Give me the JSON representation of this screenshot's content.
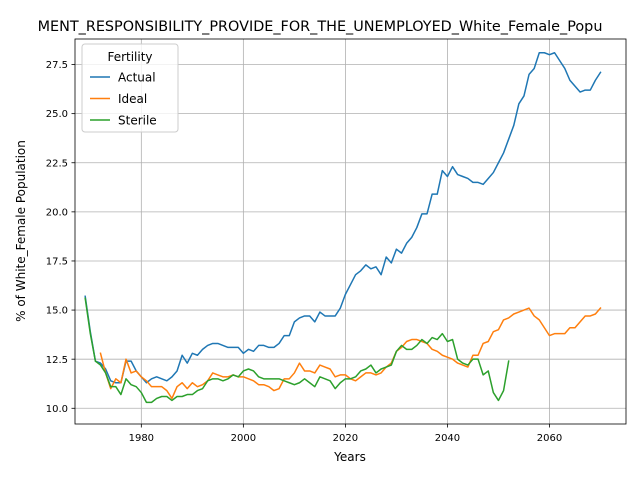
{
  "chart_data": {
    "type": "line",
    "title": "MENT_RESPONSIBILITY_PROVIDE_FOR_THE_UNEMPLOYED_White_Female_Popu",
    "xlabel": "Years",
    "ylabel": "% of White_Female Population",
    "xlim": [
      1967.0,
      2075.0
    ],
    "ylim": [
      9.2,
      28.8
    ],
    "xticks": [
      1980,
      2000,
      2020,
      2040,
      2060
    ],
    "xtick_labels": [
      "1980",
      "2000",
      "2020",
      "2040",
      "2060"
    ],
    "yticks": [
      10.0,
      12.5,
      15.0,
      17.5,
      20.0,
      22.5,
      25.0,
      27.5
    ],
    "ytick_labels": [
      "10.0",
      "12.5",
      "15.0",
      "17.5",
      "20.0",
      "22.5",
      "25.0",
      "27.5"
    ],
    "grid": true,
    "legend": {
      "title": "Fertility",
      "placement": "top-left"
    },
    "series": [
      {
        "name": "Actual",
        "color": "#1f77b4",
        "x": [
          1969,
          1970,
          1971,
          1972,
          1973,
          1974,
          1975,
          1976,
          1977,
          1978,
          1979,
          1980,
          1981,
          1982,
          1983,
          1984,
          1985,
          1986,
          1987,
          1988,
          1989,
          1990,
          1991,
          1992,
          1993,
          1994,
          1995,
          1996,
          1997,
          1998,
          1999,
          2000,
          2001,
          2002,
          2003,
          2004,
          2005,
          2006,
          2007,
          2008,
          2009,
          2010,
          2011,
          2012,
          2013,
          2014,
          2015,
          2016,
          2017,
          2018,
          2019,
          2020,
          2021,
          2022,
          2023,
          2024,
          2025,
          2026,
          2027,
          2028,
          2029,
          2030,
          2031,
          2032,
          2033,
          2034,
          2035,
          2036,
          2037,
          2038,
          2039,
          2040,
          2041,
          2042,
          2043,
          2044,
          2045,
          2046,
          2047,
          2048,
          2049,
          2050,
          2051,
          2052,
          2053,
          2054,
          2055,
          2056,
          2057,
          2058,
          2059,
          2060,
          2061,
          2062,
          2063,
          2064,
          2065,
          2066,
          2067,
          2068,
          2069,
          2070
        ],
        "y": [
          15.7,
          13.9,
          12.4,
          12.3,
          12.0,
          11.4,
          11.3,
          11.3,
          12.4,
          12.4,
          11.9,
          11.6,
          11.3,
          11.5,
          11.6,
          11.5,
          11.4,
          11.6,
          11.9,
          12.7,
          12.3,
          12.8,
          12.7,
          13.0,
          13.2,
          13.3,
          13.3,
          13.2,
          13.1,
          13.1,
          13.1,
          12.8,
          13.0,
          12.9,
          13.2,
          13.2,
          13.1,
          13.1,
          13.3,
          13.7,
          13.7,
          14.4,
          14.6,
          14.7,
          14.7,
          14.4,
          14.9,
          14.7,
          14.7,
          14.7,
          15.1,
          15.8,
          16.3,
          16.8,
          17.0,
          17.3,
          17.1,
          17.2,
          16.8,
          17.7,
          17.4,
          18.1,
          17.9,
          18.4,
          18.7,
          19.2,
          19.9,
          19.9,
          20.9,
          20.9,
          22.1,
          21.8,
          22.3,
          21.9,
          21.8,
          21.7,
          21.5,
          21.5,
          21.4,
          21.7,
          22.0,
          22.5,
          23.0,
          23.7,
          24.4,
          25.5,
          25.9,
          27.0,
          27.3,
          28.1,
          28.1,
          28.0,
          28.1,
          27.7,
          27.3,
          26.7,
          26.4,
          26.1,
          26.2,
          26.2,
          26.7,
          27.1
        ]
      },
      {
        "name": "Ideal",
        "color": "#ff7f0e",
        "x": [
          1972,
          1973,
          1974,
          1975,
          1976,
          1977,
          1978,
          1979,
          1980,
          1981,
          1982,
          1983,
          1984,
          1985,
          1986,
          1987,
          1988,
          1989,
          1990,
          1991,
          1992,
          1993,
          1994,
          1995,
          1996,
          1997,
          1998,
          1999,
          2000,
          2001,
          2002,
          2003,
          2004,
          2005,
          2006,
          2007,
          2008,
          2009,
          2010,
          2011,
          2012,
          2013,
          2014,
          2015,
          2016,
          2017,
          2018,
          2019,
          2020,
          2021,
          2022,
          2023,
          2024,
          2025,
          2026,
          2027,
          2028,
          2029,
          2030,
          2031,
          2032,
          2033,
          2034,
          2035,
          2036,
          2037,
          2038,
          2039,
          2040,
          2041,
          2042,
          2043,
          2044,
          2045,
          2046,
          2047,
          2048,
          2049,
          2050,
          2051,
          2052,
          2053,
          2054,
          2055,
          2056,
          2057,
          2058,
          2059,
          2060,
          2061,
          2062,
          2063,
          2064,
          2065,
          2066,
          2067,
          2068,
          2069,
          2070
        ],
        "y": [
          12.8,
          11.8,
          11.0,
          11.5,
          11.3,
          12.5,
          11.8,
          11.9,
          11.6,
          11.4,
          11.1,
          11.1,
          11.1,
          10.9,
          10.5,
          11.1,
          11.3,
          11.0,
          11.3,
          11.1,
          11.2,
          11.4,
          11.8,
          11.7,
          11.6,
          11.6,
          11.7,
          11.6,
          11.6,
          11.5,
          11.4,
          11.2,
          11.2,
          11.1,
          10.9,
          11.0,
          11.5,
          11.5,
          11.8,
          12.3,
          11.9,
          11.9,
          11.8,
          12.2,
          12.1,
          12.0,
          11.6,
          11.7,
          11.7,
          11.5,
          11.4,
          11.6,
          11.8,
          11.8,
          11.7,
          11.8,
          12.1,
          12.3,
          12.9,
          13.1,
          13.4,
          13.5,
          13.5,
          13.4,
          13.3,
          13.0,
          12.9,
          12.7,
          12.6,
          12.5,
          12.3,
          12.2,
          12.1,
          12.7,
          12.7,
          13.3,
          13.4,
          13.9,
          14.0,
          14.5,
          14.6,
          14.8,
          14.9,
          15.0,
          15.1,
          14.7,
          14.5,
          14.1,
          13.7,
          13.8,
          13.8,
          13.8,
          14.1,
          14.1,
          14.4,
          14.7,
          14.7,
          14.8,
          15.1
        ]
      },
      {
        "name": "Sterile",
        "color": "#2ca02c",
        "x": [
          1969,
          1970,
          1971,
          1972,
          1973,
          1974,
          1975,
          1976,
          1977,
          1978,
          1979,
          1980,
          1981,
          1982,
          1983,
          1984,
          1985,
          1986,
          1987,
          1988,
          1989,
          1990,
          1991,
          1992,
          1993,
          1994,
          1995,
          1996,
          1997,
          1998,
          1999,
          2000,
          2001,
          2002,
          2003,
          2004,
          2005,
          2006,
          2007,
          2008,
          2009,
          2010,
          2011,
          2012,
          2013,
          2014,
          2015,
          2016,
          2017,
          2018,
          2019,
          2020,
          2021,
          2022,
          2023,
          2024,
          2025,
          2026,
          2027,
          2028,
          2029,
          2030,
          2031,
          2032,
          2033,
          2034,
          2035,
          2036,
          2037,
          2038,
          2039,
          2040,
          2041,
          2042,
          2043,
          2044,
          2045,
          2046,
          2047,
          2048,
          2049,
          2050,
          2051,
          2052
        ],
        "y": [
          15.6,
          13.8,
          12.4,
          12.2,
          11.8,
          11.1,
          11.1,
          10.7,
          11.5,
          11.2,
          11.1,
          10.8,
          10.3,
          10.3,
          10.5,
          10.6,
          10.6,
          10.4,
          10.6,
          10.6,
          10.7,
          10.7,
          10.9,
          11.0,
          11.4,
          11.5,
          11.5,
          11.4,
          11.5,
          11.7,
          11.6,
          11.9,
          12.0,
          11.9,
          11.6,
          11.5,
          11.5,
          11.5,
          11.5,
          11.4,
          11.3,
          11.2,
          11.3,
          11.5,
          11.3,
          11.1,
          11.6,
          11.5,
          11.4,
          11.0,
          11.3,
          11.5,
          11.5,
          11.6,
          11.9,
          12.0,
          12.2,
          11.8,
          12.0,
          12.1,
          12.2,
          12.9,
          13.2,
          13.0,
          13.0,
          13.2,
          13.5,
          13.3,
          13.6,
          13.5,
          13.8,
          13.4,
          13.5,
          12.5,
          12.3,
          12.2,
          12.5,
          12.5,
          11.7,
          11.9,
          10.8,
          10.4,
          10.9,
          12.4
        ]
      }
    ]
  }
}
